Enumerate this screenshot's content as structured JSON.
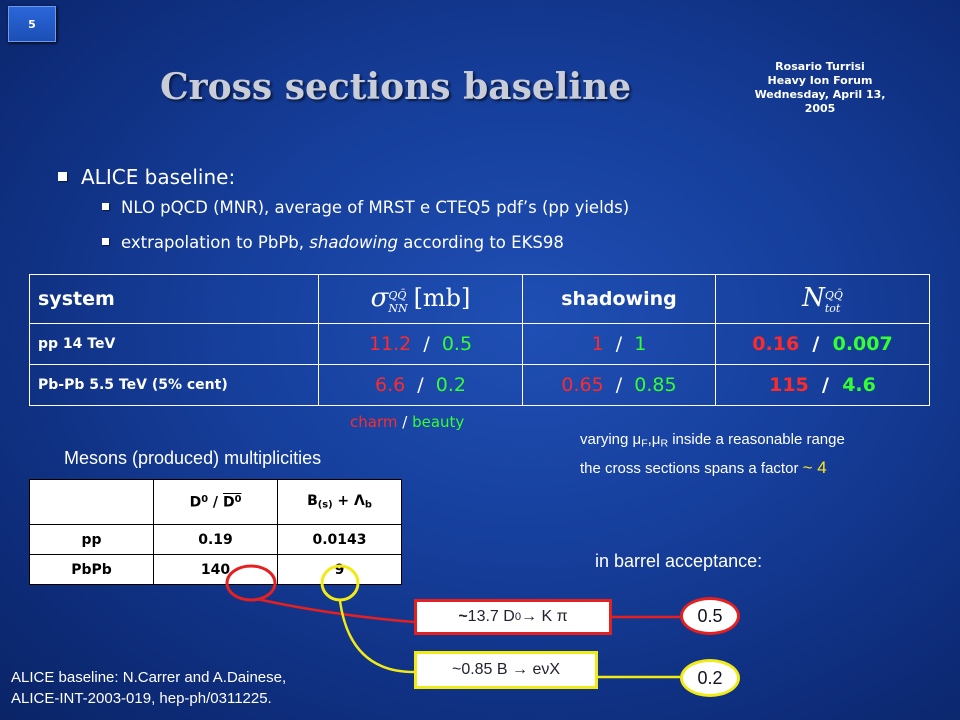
{
  "slide": {
    "page_number": "5",
    "title": "Cross sections baseline",
    "author": [
      "Rosario Turrisi",
      "Heavy Ion Forum",
      "Wednesday, April 13, 2005"
    ]
  },
  "bullets": {
    "main": "ALICE baseline:",
    "sub1": "NLO pQCD (MNR), average of MRST e CTEQ5 pdf’s (pp yields)",
    "sub2_a": "extrapolation to PbPb, ",
    "sub2_b": "shadowing",
    "sub2_c": " according to EKS98"
  },
  "cross_table": {
    "headers": {
      "system": "system",
      "sigma": "σ",
      "sigma_sub": "NN",
      "sigma_sup": "QQ̄",
      "sigma_unit": "[mb]",
      "shadowing": "shadowing",
      "ntot": "N",
      "ntot_sub": "tot",
      "ntot_sup": "QQ̄"
    },
    "rows": [
      {
        "system": "pp 14 TeV",
        "sigma_c": "11.2",
        "sigma_b": "0.5",
        "shad_c": "1",
        "shad_b": "1",
        "n_c": "0.16",
        "n_b": "0.007"
      },
      {
        "system": "Pb-Pb 5.5 TeV (5% cent)",
        "sigma_c": "6.6",
        "sigma_b": "0.2",
        "shad_c": "0.65",
        "shad_b": "0.85",
        "n_c": "115",
        "n_b": "4.6"
      }
    ],
    "separator": "/",
    "legend_charm": "charm",
    "legend_beauty": "beauty"
  },
  "varying": {
    "line1_a": "varying ",
    "line1_mu": "μ",
    "line1_sub_f": "F",
    "line1_sep": ",",
    "line1_sub_r": "R",
    "line1_b": " inside a reasonable range",
    "line2": "the cross sections spans a factor ",
    "factor": "~ 4"
  },
  "mesons": {
    "title": "Mesons (produced) multiplicities",
    "col1": "D",
    "col1_sup": "0",
    "col1_sep": " / ",
    "col1b": "D",
    "col1b_sup": "0",
    "col2": "B",
    "col2_sub": "(s)",
    "col2_plus": " + Λ",
    "col2_sub2": "b",
    "rows": [
      {
        "label": "pp",
        "d": "0.19",
        "b": "0.0143"
      },
      {
        "label": "PbPb",
        "d": "140",
        "b": "9"
      }
    ]
  },
  "barrel": {
    "title": "in barrel acceptance:",
    "box1_tilde": "~",
    "box1": "13.7 D",
    "box1_sup": "0",
    "box1_rest": " → K π",
    "box2": "~0.85 B → eνX",
    "val1": "0.5",
    "val2": "0.2"
  },
  "reference": {
    "line1": "ALICE baseline: N.Carrer and A.Dainese,",
    "line2": "ALICE-INT-2003-019, hep-ph/0311225."
  },
  "colors": {
    "charm": "#ff2a2a",
    "beauty": "#33ff33",
    "box1_border": "#e52020",
    "box2_border": "#f2ea14"
  }
}
